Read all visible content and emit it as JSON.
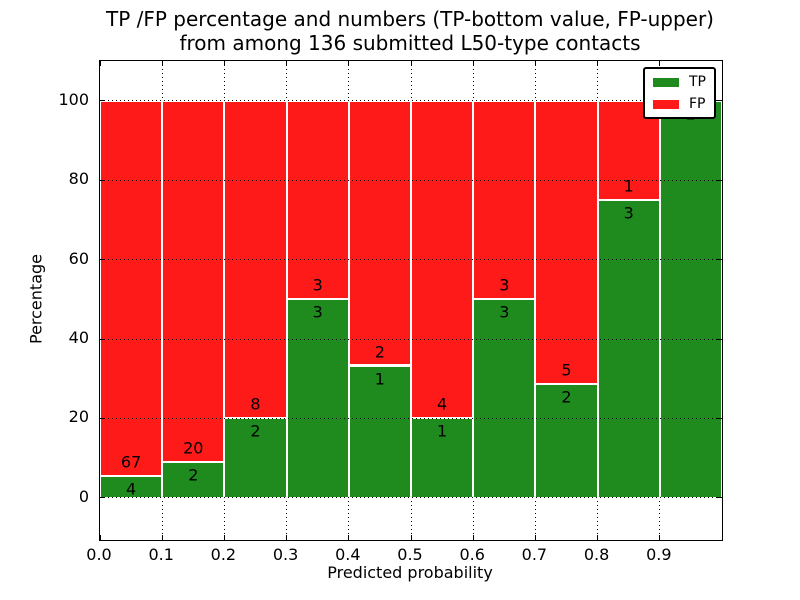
{
  "figure": {
    "title_line1": "TP /FP percentage and numbers (TP-bottom value, FP-upper)",
    "title_line2": "from among 136 submitted L50-type contacts"
  },
  "chart_data": {
    "type": "bar",
    "stacked": true,
    "normalized": "percent of bin total",
    "title": "TP /FP percentage and numbers (TP-bottom value, FP-upper) from among 136 submitted L50-type contacts",
    "xlabel": "Predicted probability",
    "ylabel": "Percentage",
    "xlim": [
      0.0,
      1.0
    ],
    "ylim": [
      -10.6,
      110
    ],
    "grid": "dotted",
    "legend_position": "upper right",
    "bin_edges": [
      0.0,
      0.1,
      0.2,
      0.3,
      0.4,
      0.5,
      0.6,
      0.7,
      0.8,
      0.9,
      1.0
    ],
    "xtick_labels": [
      "0.0",
      "0.1",
      "0.2",
      "0.3",
      "0.4",
      "0.5",
      "0.6",
      "0.7",
      "0.8",
      "0.9"
    ],
    "ytick_values": [
      0,
      20,
      40,
      60,
      80,
      100
    ],
    "series": [
      {
        "name": "TP",
        "color": "#1F8B1F",
        "counts": [
          4,
          2,
          2,
          3,
          1,
          1,
          3,
          2,
          3,
          2
        ]
      },
      {
        "name": "FP",
        "color": "#FF1A1A",
        "counts": [
          67,
          20,
          8,
          3,
          2,
          4,
          3,
          5,
          1,
          0
        ]
      }
    ],
    "tp_percent_heights": [
      5.6,
      9.1,
      20.0,
      50.0,
      33.3,
      20.0,
      50.0,
      28.6,
      75.0,
      100.0
    ]
  },
  "legend": {
    "entries": [
      {
        "label": "TP",
        "color": "#1F8B1F"
      },
      {
        "label": "FP",
        "color": "#FF1A1A"
      }
    ]
  }
}
